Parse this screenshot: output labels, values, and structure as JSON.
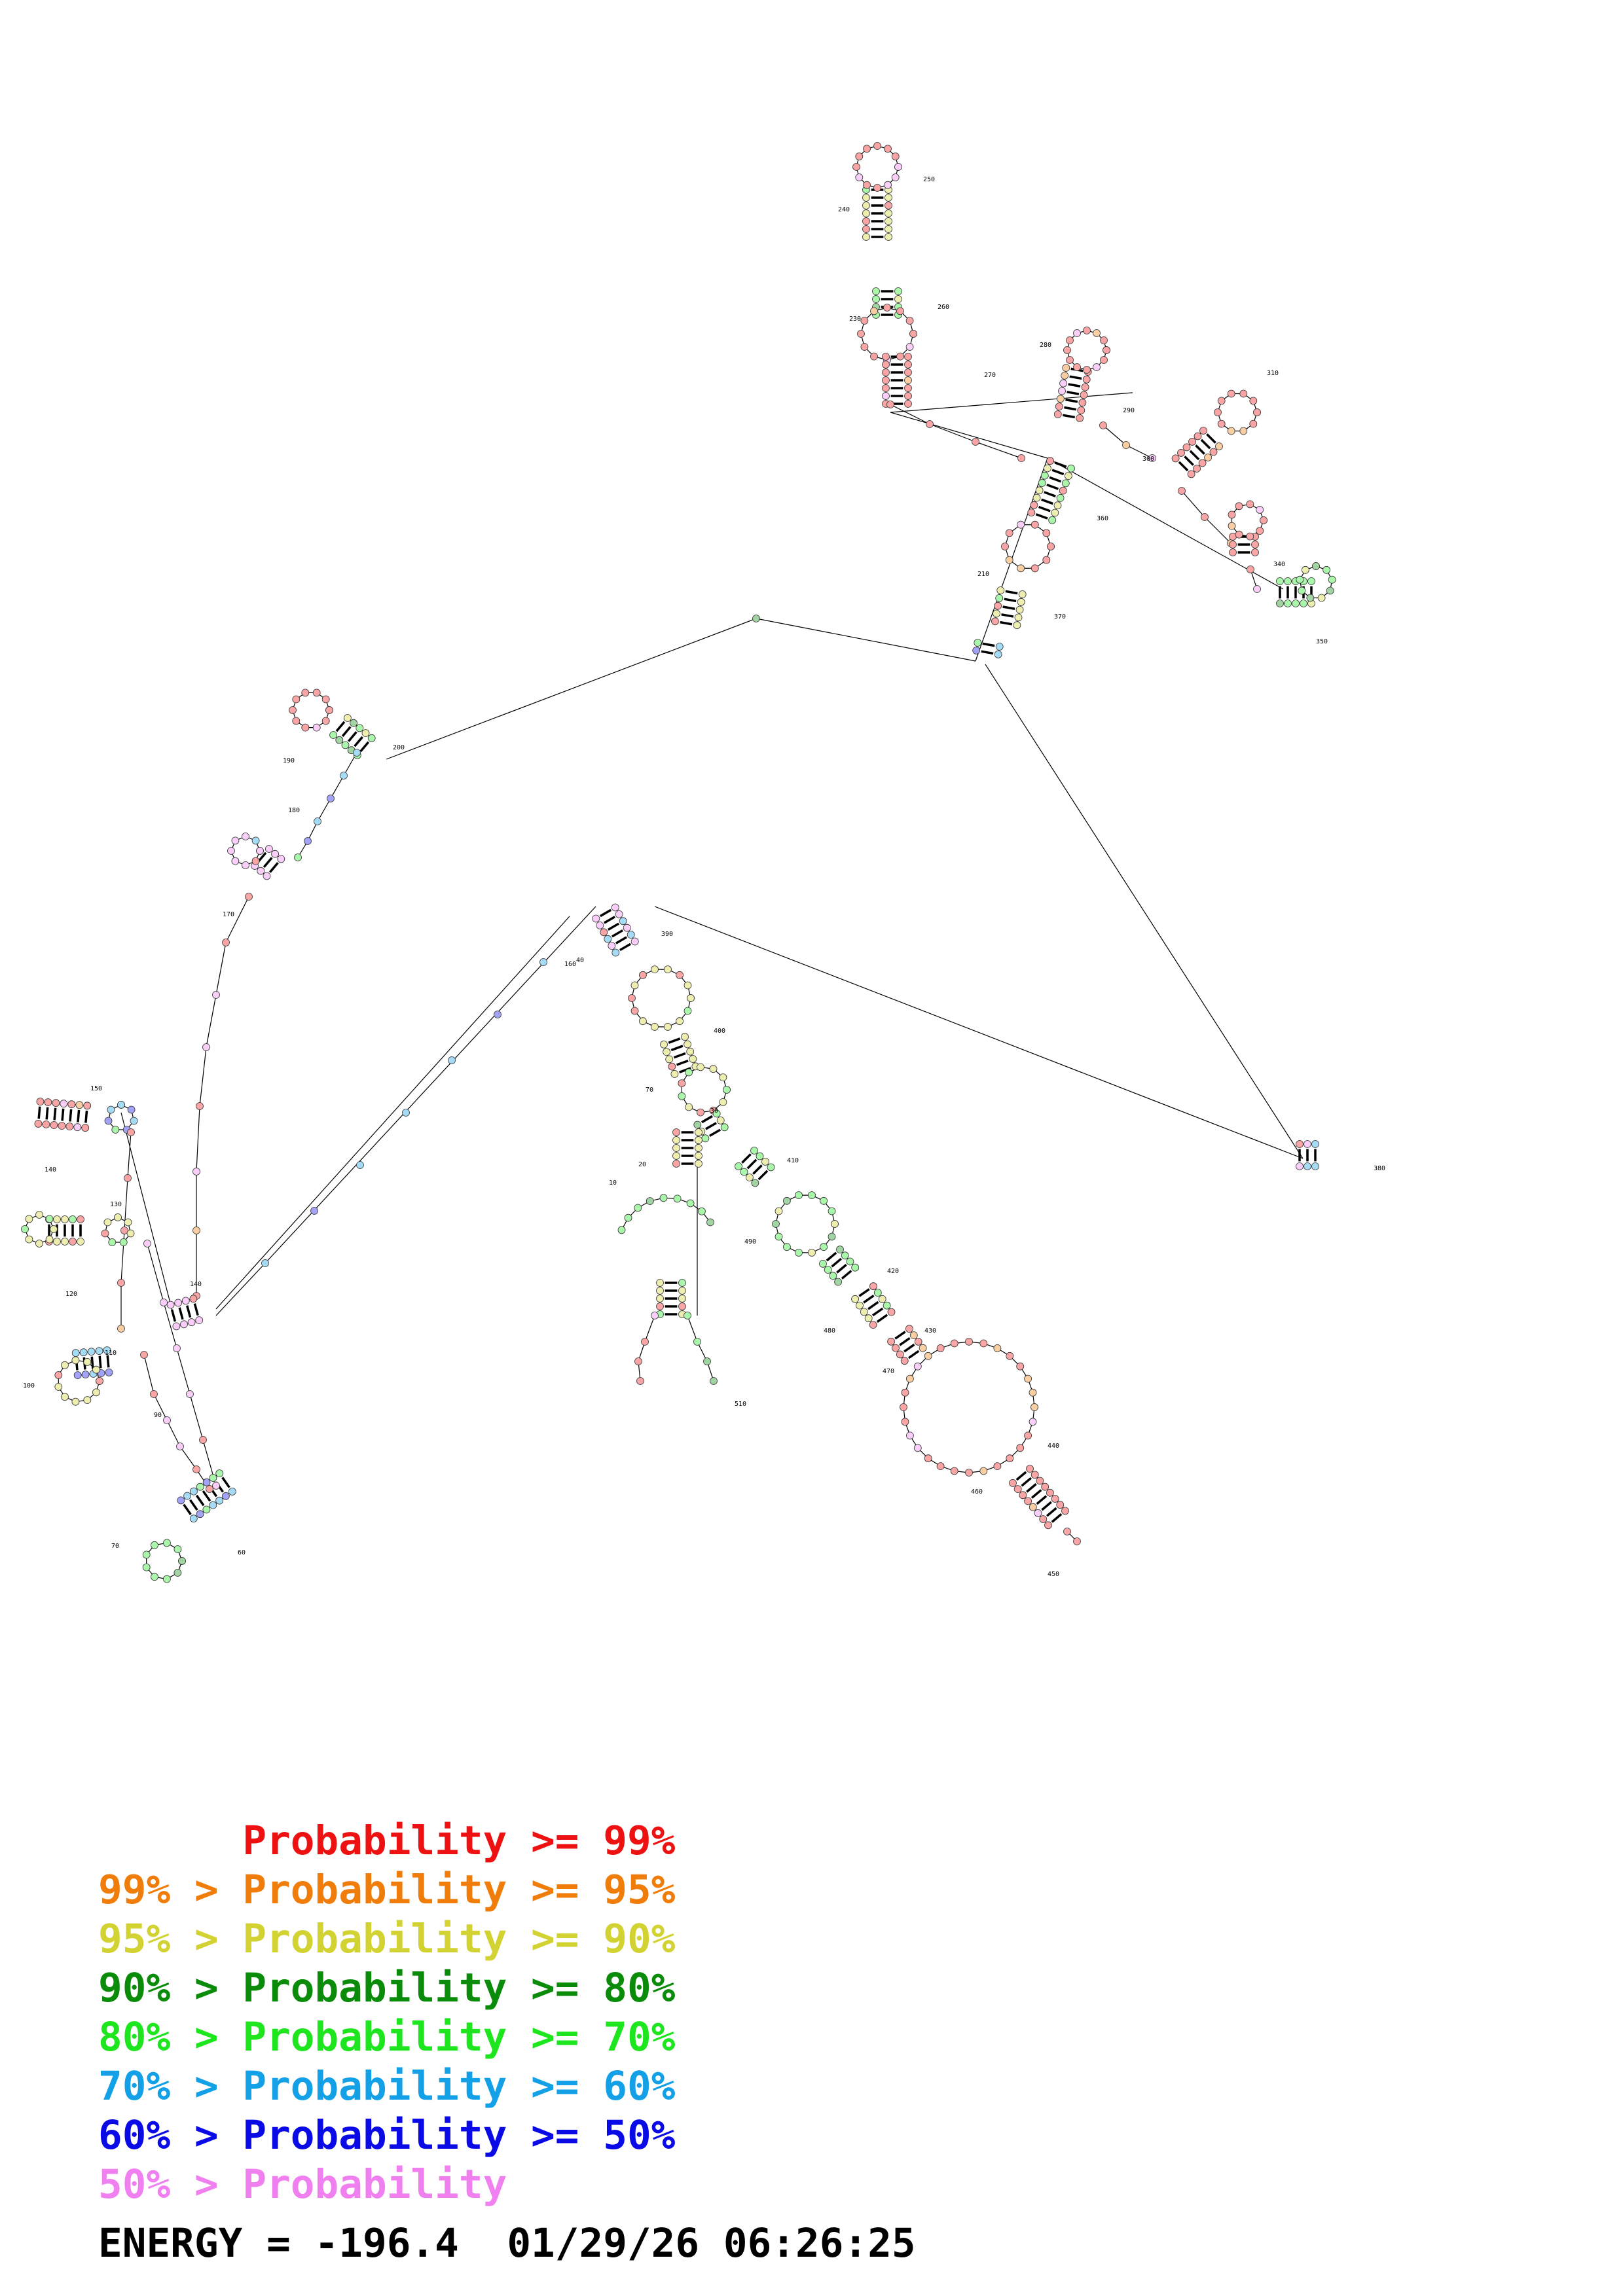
{
  "colors": {
    "p99": "#ee1111",
    "p95": "#f07d0a",
    "p90": "#d2d232",
    "p80": "#0a8c0a",
    "p70": "#1ee61e",
    "p60": "#14a0e6",
    "p50": "#0a0ae6",
    "plt50": "#f07ff0"
  },
  "diagram": {
    "position_labels": [
      "10",
      "20",
      "30",
      "40",
      "60",
      "70",
      "70",
      "90",
      "100",
      "110",
      "120",
      "130",
      "140",
      "140",
      "150",
      "160",
      "170",
      "180",
      "190",
      "200",
      "210",
      "230",
      "240",
      "250",
      "260",
      "270",
      "280",
      "290",
      "300",
      "310",
      "340",
      "350",
      "360",
      "370",
      "380",
      "390",
      "400",
      "410",
      "420",
      "430",
      "440",
      "450",
      "460",
      "470",
      "480",
      "490",
      "510"
    ]
  },
  "legend": {
    "lines": [
      {
        "text": "      Probability >= 99%",
        "color": "#ee1111"
      },
      {
        "text": "99% > Probability >= 95%",
        "color": "#f07d0a"
      },
      {
        "text": "95% > Probability >= 90%",
        "color": "#d2d232"
      },
      {
        "text": "90% > Probability >= 80%",
        "color": "#0a8c0a"
      },
      {
        "text": "80% > Probability >= 70%",
        "color": "#1ee61e"
      },
      {
        "text": "70% > Probability >= 60%",
        "color": "#14a0e6"
      },
      {
        "text": "60% > Probability >= 50%",
        "color": "#0a0ae6"
      },
      {
        "text": "50% > Probability",
        "color": "#f07ff0"
      }
    ]
  },
  "footer": {
    "energy": "ENERGY = -196.4  01/29/26 06:26:25"
  }
}
